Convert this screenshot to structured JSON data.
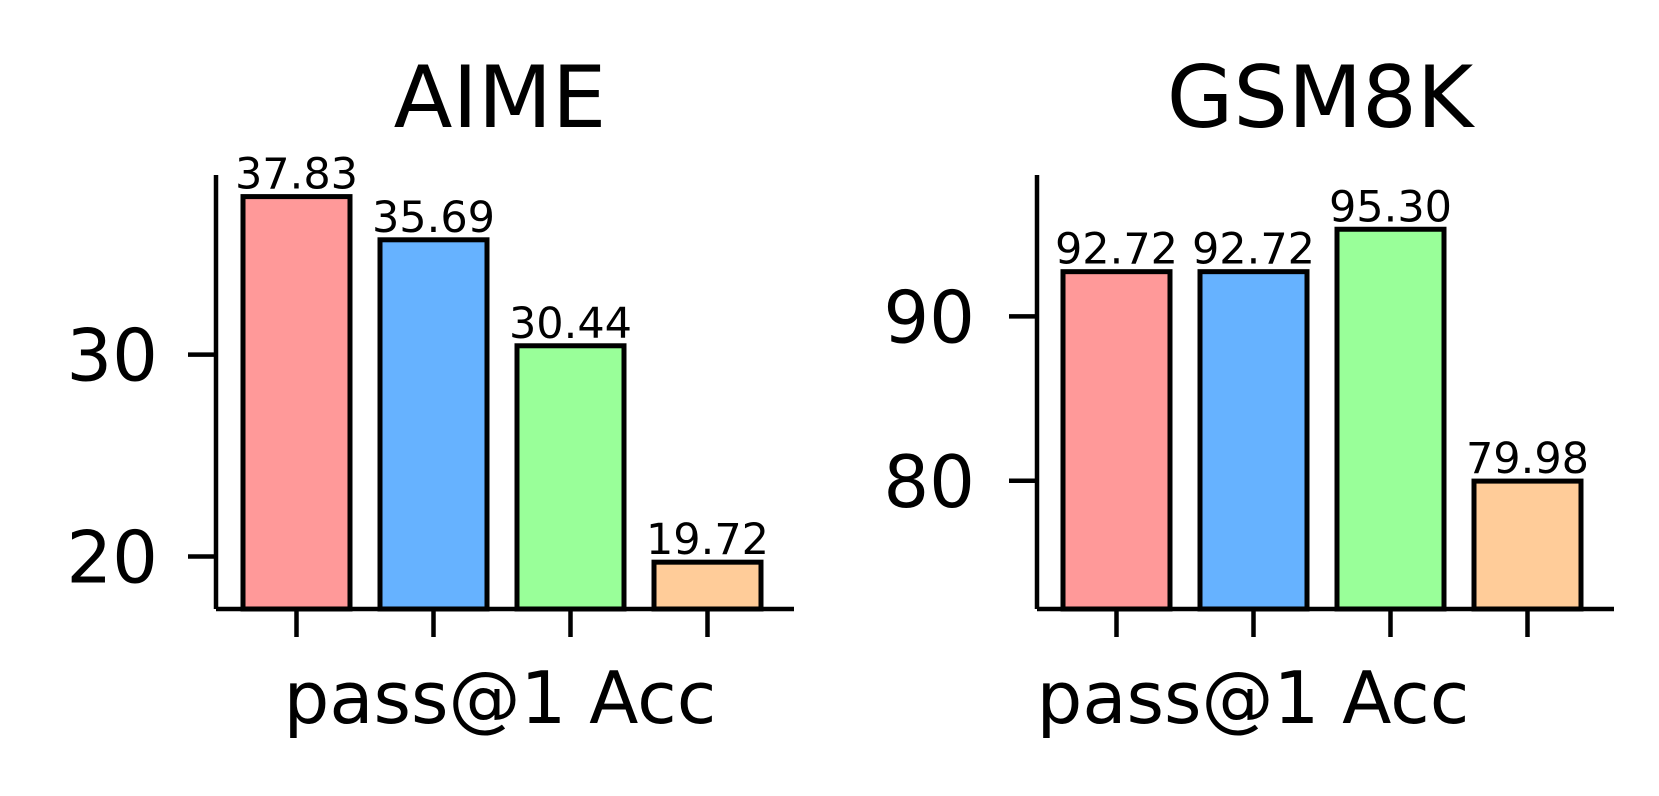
{
  "chart_data": [
    {
      "type": "bar",
      "title": "AIME",
      "xlabel": "pass@1 Acc",
      "ylabel": "",
      "categories": [
        "",
        "",
        "",
        ""
      ],
      "values": [
        37.83,
        35.69,
        30.44,
        19.72
      ],
      "value_labels": [
        "37.83",
        "35.69",
        "30.44",
        "19.72"
      ],
      "colors": [
        "#ff9999",
        "#66b2ff",
        "#99ff99",
        "#ffcc99"
      ],
      "ylim": [
        17.4,
        38.9
      ],
      "yticks": [
        20,
        30
      ],
      "ytick_labels": [
        "20",
        "30"
      ],
      "grid": false,
      "legend": "none"
    },
    {
      "type": "bar",
      "title": "GSM8K",
      "xlabel": "pass@1 Acc",
      "ylabel": "",
      "categories": [
        "",
        "",
        "",
        ""
      ],
      "values": [
        92.72,
        92.72,
        95.3,
        79.98
      ],
      "value_labels": [
        "92.72",
        "92.72",
        "95.30",
        "79.98"
      ],
      "colors": [
        "#ff9999",
        "#66b2ff",
        "#99ff99",
        "#ffcc99"
      ],
      "ylim": [
        72.2,
        98.6
      ],
      "yticks": [
        80,
        90
      ],
      "ytick_labels": [
        "80",
        "90"
      ],
      "grid": false,
      "legend": "none"
    }
  ]
}
